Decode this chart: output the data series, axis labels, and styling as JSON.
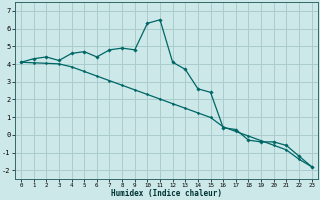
{
  "xlabel": "Humidex (Indice chaleur)",
  "bg_color": "#cce8e8",
  "grid_color": "#aacccc",
  "line_color": "#006666",
  "line1_x": [
    0,
    1,
    2,
    3,
    4,
    5,
    6,
    7,
    8,
    9,
    10,
    11,
    12,
    13,
    14,
    15,
    16,
    17,
    18,
    19,
    20,
    21,
    22,
    23
  ],
  "line1_y": [
    4.1,
    4.3,
    4.4,
    4.2,
    4.6,
    4.7,
    4.4,
    4.8,
    4.9,
    4.8,
    6.3,
    6.5,
    4.1,
    3.7,
    2.6,
    2.4,
    0.4,
    0.3,
    -0.3,
    -0.4,
    -0.4,
    -0.6,
    -1.2,
    -1.8
  ],
  "line2_x": [
    0,
    1,
    2,
    3,
    4,
    5,
    6,
    7,
    8,
    9,
    10,
    11,
    12,
    13,
    14,
    15,
    16,
    17,
    18,
    19,
    20,
    21,
    22,
    23
  ],
  "line2_y": [
    4.1,
    4.07,
    4.04,
    4.01,
    3.84,
    3.58,
    3.32,
    3.06,
    2.8,
    2.54,
    2.28,
    2.02,
    1.76,
    1.5,
    1.24,
    0.98,
    0.45,
    0.19,
    -0.07,
    -0.33,
    -0.59,
    -0.85,
    -1.38,
    -1.8
  ],
  "ylim": [
    -2.5,
    7.5
  ],
  "xlim": [
    -0.5,
    23.5
  ],
  "yticks": [
    -2,
    -1,
    0,
    1,
    2,
    3,
    4,
    5,
    6,
    7
  ],
  "xticks": [
    0,
    1,
    2,
    3,
    4,
    5,
    6,
    7,
    8,
    9,
    10,
    11,
    12,
    13,
    14,
    15,
    16,
    17,
    18,
    19,
    20,
    21,
    22,
    23
  ]
}
